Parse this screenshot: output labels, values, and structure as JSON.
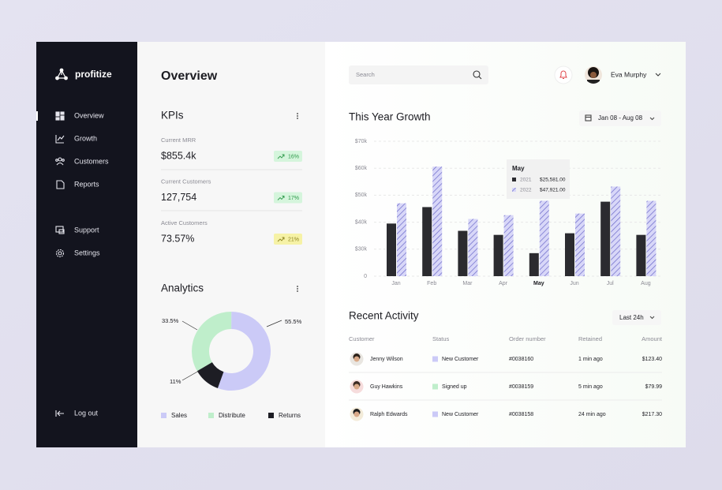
{
  "sidebar": {
    "brand": "profitize",
    "menu": [
      "Overview",
      "Growth",
      "Customers",
      "Reports"
    ],
    "secondary": [
      "Support",
      "Settings"
    ],
    "logout": "Log out"
  },
  "overview": {
    "title": "Overview",
    "kpis": {
      "title": "KPIs",
      "items": [
        {
          "label": "Current MRR",
          "value": "$855.4k",
          "change": "16%"
        },
        {
          "label": "Current Customers",
          "value": "127,754",
          "change": "17%"
        },
        {
          "label": "Active Customers",
          "value": "73.57%",
          "change": "21%"
        }
      ]
    }
  },
  "analytics": {
    "type": "pie",
    "title": "Analytics",
    "categories": [
      "Sales",
      "Distribute",
      "Returns"
    ],
    "values": [
      55.5,
      33.5,
      11
    ],
    "value_labels": [
      "55.5%",
      "33.5%",
      "11%"
    ],
    "colors": [
      "#cbcaf7",
      "#bfeecb",
      "#1d1d24"
    ]
  },
  "header": {
    "search_placeholder": "Search",
    "user": "Eva Murphy"
  },
  "growth": {
    "type": "bar",
    "title": "This Year Growth",
    "date_range": "Jan 08 - Aug 08",
    "categories": [
      "Jan",
      "Feb",
      "Mar",
      "Apr",
      "May",
      "Jun",
      "Jul",
      "Aug"
    ],
    "series": [
      {
        "name": "2021",
        "color": "#2b2b2f",
        "values": [
          39500,
          45600,
          36800,
          35300,
          25581,
          35900,
          47600,
          35300
        ]
      },
      {
        "name": "2022",
        "color": "#d8d7f8",
        "pattern_color": "#6b69c9",
        "values": [
          47000,
          60600,
          41200,
          42600,
          47921,
          43200,
          53200,
          47900
        ]
      }
    ],
    "ylim": [
      0,
      70000
    ],
    "yticks": [
      0,
      {
        "value": 30000,
        "label": "$30k"
      },
      {
        "value": 40000,
        "label": "$40k"
      },
      {
        "value": 50000,
        "label": "$50k"
      },
      {
        "value": 60000,
        "label": "$60k"
      },
      {
        "value": 70000,
        "label": "$70k"
      }
    ],
    "grid": true,
    "tooltip": {
      "values": [
        "$25,581.00",
        "$47,921.00"
      ]
    }
  },
  "activity": {
    "title": "Recent Activity",
    "filter": "Last 24h",
    "columns": [
      "Customer",
      "Status",
      "Order number",
      "Retained",
      "Amount"
    ],
    "rows": [
      [
        "Jenny Wilson",
        "New Customer",
        "#0038160",
        "1 min ago",
        "$123.40"
      ],
      [
        "Guy Hawkins",
        "Signed up",
        "#0038159",
        "5 min ago",
        "$79.99"
      ],
      [
        "Ralph Edwards",
        "New Customer",
        "#0038158",
        "24 min ago",
        "$217.30"
      ]
    ]
  }
}
